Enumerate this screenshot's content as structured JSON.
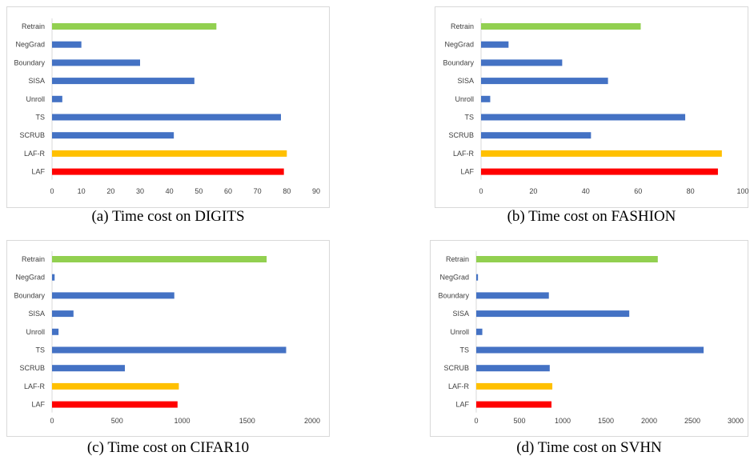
{
  "colors": {
    "retrain": "#92d050",
    "baseline": "#4472c4",
    "laf_r": "#ffc000",
    "laf": "#ff0000"
  },
  "chart_data": [
    {
      "type": "bar",
      "orientation": "horizontal",
      "caption": "(a) Time cost on DIGITS",
      "categories": [
        "Retrain",
        "NegGrad",
        "Boundary",
        "SISA",
        "Unroll",
        "TS",
        "SCRUB",
        "LAF-R",
        "LAF"
      ],
      "values": [
        56,
        10,
        30,
        48.5,
        3.5,
        78,
        41.5,
        80,
        79
      ],
      "xlim": [
        0,
        90
      ],
      "xticks": [
        0,
        10,
        20,
        30,
        40,
        50,
        60,
        70,
        80,
        90
      ],
      "grid": false,
      "legend": "none"
    },
    {
      "type": "bar",
      "orientation": "horizontal",
      "caption": "(b) Time cost on FASHION",
      "categories": [
        "Retrain",
        "NegGrad",
        "Boundary",
        "SISA",
        "Unroll",
        "TS",
        "SCRUB",
        "LAF-R",
        "LAF"
      ],
      "values": [
        61,
        10.5,
        31,
        48.5,
        3.5,
        78,
        42,
        92,
        90.5
      ],
      "xlim": [
        0,
        100
      ],
      "xticks": [
        0,
        20,
        40,
        60,
        80,
        100
      ],
      "grid": false,
      "legend": "none"
    },
    {
      "type": "bar",
      "orientation": "horizontal",
      "caption": "(c) Time cost on CIFAR10",
      "categories": [
        "Retrain",
        "NegGrad",
        "Boundary",
        "SISA",
        "Unroll",
        "TS",
        "SCRUB",
        "LAF-R",
        "LAF"
      ],
      "values": [
        1650,
        20,
        940,
        165,
        50,
        1800,
        560,
        975,
        965
      ],
      "xlim": [
        0,
        2000
      ],
      "xticks": [
        0,
        500,
        1000,
        1500,
        2000
      ],
      "grid": false,
      "legend": "none"
    },
    {
      "type": "bar",
      "orientation": "horizontal",
      "caption": "(d) Time cost on SVHN",
      "categories": [
        "Retrain",
        "NegGrad",
        "Boundary",
        "SISA",
        "Unroll",
        "TS",
        "SCRUB",
        "LAF-R",
        "LAF"
      ],
      "values": [
        2100,
        20,
        840,
        1770,
        70,
        2630,
        850,
        880,
        870
      ],
      "xlim": [
        0,
        3000
      ],
      "xticks": [
        0,
        500,
        1000,
        1500,
        2000,
        2500,
        3000
      ],
      "grid": false,
      "legend": "none"
    }
  ]
}
